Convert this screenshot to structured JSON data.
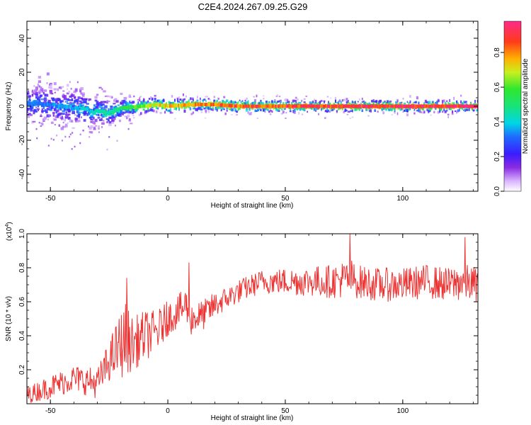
{
  "title": "C2E4.2024.267.09.25.G29",
  "chart_data": [
    {
      "type": "heatmap",
      "xlabel": "Height of straight line (km)",
      "ylabel": "Frequency (Hz)",
      "xlim": [
        -60,
        132
      ],
      "ylim": [
        -50,
        50
      ],
      "xticks": [
        -50,
        0,
        50,
        100
      ],
      "xticklabels": [
        "-50",
        "0",
        "50",
        "100"
      ],
      "yticks": [
        -40,
        -20,
        0,
        20,
        40
      ],
      "yticklabels": [
        "-40",
        "-20",
        "0",
        "20",
        "40"
      ],
      "ridge": {
        "x": [
          -60,
          -50,
          -40,
          -30,
          -25,
          -20,
          -10,
          -5,
          0,
          10,
          20,
          30,
          40,
          60,
          80,
          100,
          132
        ],
        "freq_hz": [
          2,
          1,
          -1,
          -3,
          -4,
          -1,
          0,
          1,
          0,
          1,
          1,
          0,
          0,
          0,
          0,
          0,
          0
        ],
        "amplitude": [
          0.35,
          0.35,
          0.4,
          0.45,
          0.5,
          0.55,
          0.7,
          0.75,
          0.8,
          0.85,
          0.85,
          0.9,
          0.92,
          0.95,
          0.97,
          0.98,
          0.98
        ],
        "spread_hz": [
          10,
          10,
          9,
          8,
          7,
          5,
          4,
          4,
          4,
          3.5,
          3.5,
          3.5,
          3,
          3,
          3,
          3,
          3
        ]
      },
      "colorbar": {
        "label": "Normalized spectral amplitude",
        "ticks": [
          0.0,
          0.2,
          0.4,
          0.6,
          0.8
        ],
        "ticklabels": [
          "0.0",
          "0.2",
          "0.4",
          "0.6",
          "0.8"
        ],
        "range": [
          0,
          0.98
        ]
      }
    },
    {
      "type": "line",
      "xlabel": "Height of straight line (km)",
      "ylabel": "SNR (10 * v/v)",
      "scale_label": "(x10",
      "scale_exp": "4",
      "scale_close": ")",
      "xlim": [
        -60,
        132
      ],
      "ylim": [
        0,
        1.0
      ],
      "xticks": [
        -50,
        0,
        50,
        100
      ],
      "xticklabels": [
        "-50",
        "0",
        "50",
        "100"
      ],
      "yticks": [
        0.2,
        0.4,
        0.6,
        0.8,
        1.0
      ],
      "yticklabels": [
        "0.2",
        "0.4",
        "0.6",
        "0.8",
        "1.0"
      ],
      "series": [
        {
          "color": "#ee3333",
          "x": [
            -60,
            -50,
            -40,
            -30,
            -25,
            -20,
            -18,
            -15,
            -10,
            -5,
            0,
            5,
            8,
            10,
            15,
            20,
            25,
            30,
            40,
            50,
            60,
            70,
            78,
            80,
            90,
            100,
            110,
            120,
            125,
            132
          ],
          "mean": [
            0.05,
            0.1,
            0.15,
            0.12,
            0.25,
            0.35,
            0.38,
            0.35,
            0.4,
            0.42,
            0.5,
            0.55,
            0.58,
            0.5,
            0.52,
            0.58,
            0.62,
            0.66,
            0.72,
            0.72,
            0.72,
            0.72,
            0.74,
            0.72,
            0.7,
            0.7,
            0.72,
            0.7,
            0.72,
            0.7
          ],
          "noise": [
            0.05,
            0.07,
            0.08,
            0.09,
            0.12,
            0.2,
            0.22,
            0.16,
            0.15,
            0.13,
            0.1,
            0.1,
            0.12,
            0.1,
            0.09,
            0.08,
            0.07,
            0.07,
            0.07,
            0.08,
            0.09,
            0.1,
            0.12,
            0.1,
            0.1,
            0.1,
            0.1,
            0.1,
            0.12,
            0.1
          ],
          "peaks": [
            [
              -17.5,
              0.74
            ],
            [
              9,
              0.83
            ],
            [
              77.5,
              1.0
            ],
            [
              126.5,
              0.98
            ],
            [
              -0.5,
              0.6
            ]
          ]
        }
      ]
    }
  ]
}
